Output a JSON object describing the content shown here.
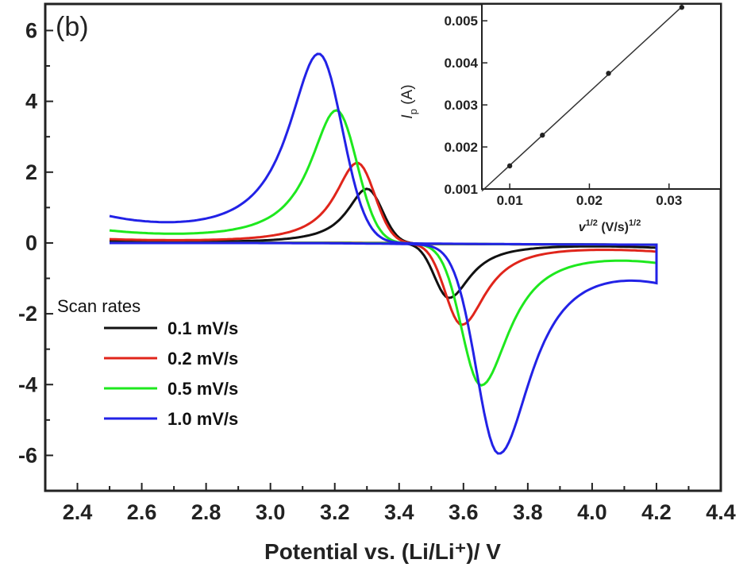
{
  "chart_data": [
    {
      "type": "line",
      "panel_label": "(b)",
      "xlabel": "Potential vs. (Li/Li⁺)/ V",
      "ylabel": "",
      "xlim": [
        2.3,
        4.4
      ],
      "ylim": [
        -7,
        6.75
      ],
      "x_ticks": [
        "2.4",
        "2.6",
        "2.8",
        "3.0",
        "3.2",
        "3.4",
        "3.6",
        "3.8",
        "4.0",
        "4.2",
        "4.4"
      ],
      "y_ticks": [
        "-6",
        "-4",
        "-2",
        "0",
        "2",
        "4",
        "6"
      ],
      "legend_title": "Scan rates",
      "legend_placement": "left-middle",
      "grid": false,
      "x_range": [
        2.5,
        4.2
      ],
      "series": [
        {
          "name": "0.1 mV/s",
          "color": "#111111",
          "anodic_peak": [
            3.3,
            1.55
          ],
          "cathodic_peak": [
            3.555,
            -1.55
          ],
          "start_current": 0.05,
          "end_current": -0.12,
          "width": 0.075
        },
        {
          "name": "0.2 mV/s",
          "color": "#e0251b",
          "anodic_peak": [
            3.27,
            2.28
          ],
          "cathodic_peak": [
            3.595,
            -2.3
          ],
          "start_current": 0.08,
          "end_current": -0.2,
          "width": 0.085
        },
        {
          "name": "0.5 mV/s",
          "color": "#1ee81e",
          "anodic_peak": [
            3.205,
            3.75
          ],
          "cathodic_peak": [
            3.655,
            -3.98
          ],
          "start_current": 0.28,
          "end_current": -0.42,
          "width": 0.1
        },
        {
          "name": "1.0 mV/s",
          "color": "#2222e6",
          "anodic_peak": [
            3.15,
            5.32
          ],
          "cathodic_peak": [
            3.71,
            -5.85
          ],
          "start_current": 0.6,
          "end_current": -0.78,
          "width": 0.115
        }
      ]
    },
    {
      "type": "scatter",
      "subtype": "inset-linear-fit",
      "xlabel_main": "v",
      "xlabel_sup": "1/2",
      "xlabel_units": " (V/s)",
      "xlabel_units_sup": "1/2",
      "ylabel_main": "I",
      "ylabel_sub": "p",
      "ylabel_units": " (A)",
      "xlim": [
        0.0065,
        0.0365
      ],
      "ylim": [
        0.001,
        0.0054
      ],
      "x_ticks": [
        "0.01",
        "0.02",
        "0.03"
      ],
      "y_ticks": [
        "0.001",
        "0.002",
        "0.003",
        "0.004",
        "0.005"
      ],
      "x": [
        0.01,
        0.0141,
        0.0224,
        0.0316
      ],
      "y": [
        0.00155,
        0.00228,
        0.00375,
        0.00532
      ],
      "fit_x": [
        0.0065,
        0.0316
      ]
    }
  ]
}
